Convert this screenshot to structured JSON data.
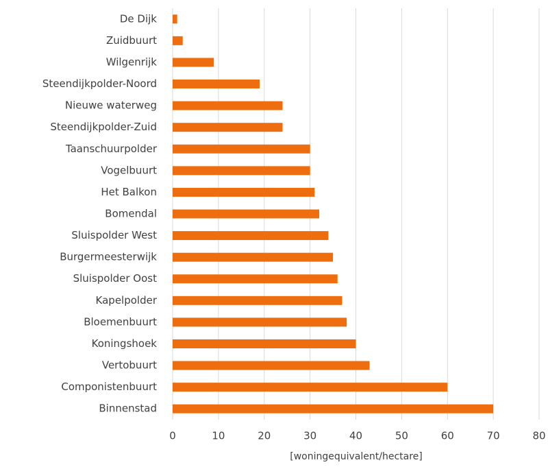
{
  "chart_data": {
    "type": "bar",
    "orientation": "horizontal",
    "x_label": "[woningequivalent/hectare]",
    "categories": [
      "De Dijk",
      "Zuidbuurt",
      "Wilgenrijk",
      "Steendijkpolder-Noord",
      "Nieuwe waterweg",
      "Steendijkpolder-Zuid",
      "Taanschuurpolder",
      "Vogelbuurt",
      "Het Balkon",
      "Bomendal",
      "Sluispolder West",
      "Burgermeesterwijk",
      "Sluispolder Oost",
      "Kapelpolder",
      "Bloemenbuurt",
      "Koningshoek",
      "Vertobuurt",
      "Componistenbuurt",
      "Binnenstad"
    ],
    "values": [
      1,
      2.2,
      9,
      19,
      24,
      24,
      30,
      30,
      31,
      32,
      34,
      35,
      36,
      37,
      38,
      40,
      43,
      60,
      70
    ],
    "color": "#ee6d0e",
    "xlim": [
      0,
      80
    ],
    "xticks": [
      0,
      10,
      20,
      30,
      40,
      50,
      60,
      70,
      80
    ],
    "grid": true
  }
}
